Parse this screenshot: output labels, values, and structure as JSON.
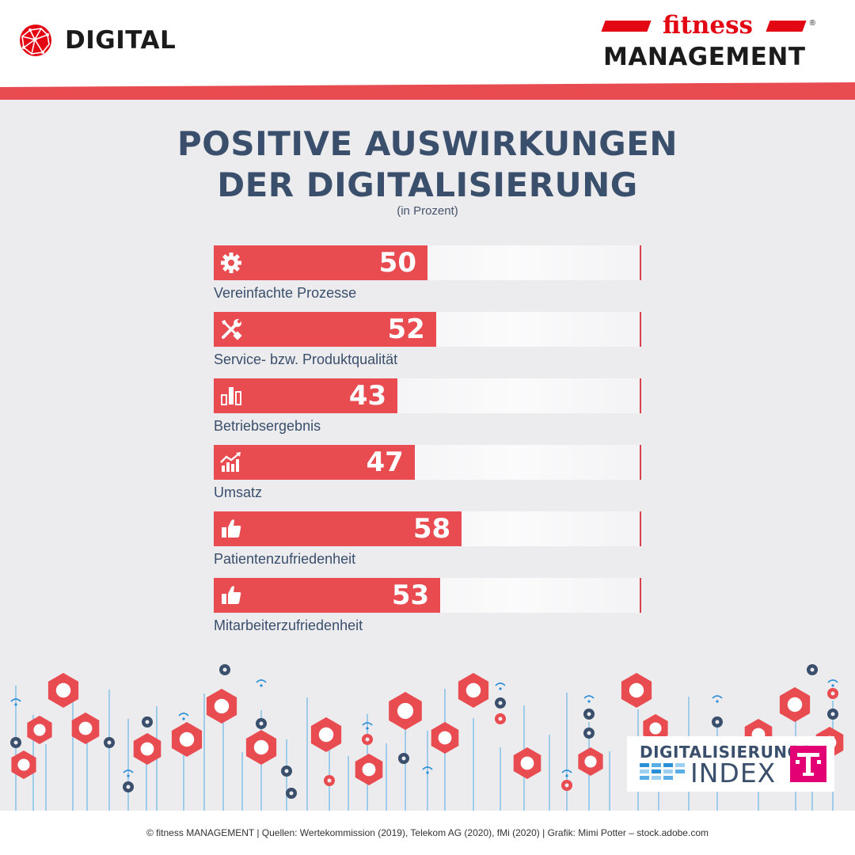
{
  "header": {
    "section_label": "DIGITAL",
    "brand_top": "fitness",
    "brand_bottom": "MANAGEMENT",
    "brand_reg": "®"
  },
  "colors": {
    "accent": "#e84b50",
    "title": "#3a4f6c",
    "brand_red": "#e30613",
    "telekom_magenta": "#e20074"
  },
  "chart_data": {
    "type": "bar",
    "orientation": "horizontal",
    "title_line1": "POSITIVE AUSWIRKUNGEN",
    "title_line2": "DER DIGITALISIERUNG",
    "subtitle": "(in Prozent)",
    "xlim": [
      0,
      100
    ],
    "grid": false,
    "legend": "none",
    "categories": [
      "Vereinfachte Prozesse",
      "Service- bzw. Produktqualität",
      "Betriebsergebnis",
      "Umsatz",
      "Patientenzufriedenheit",
      "Mitarbeiterzufriedenheit"
    ],
    "values": [
      50,
      52,
      43,
      47,
      58,
      53
    ],
    "icons": [
      "gear-icon",
      "tools-icon",
      "bar-chart-icon",
      "growth-chart-icon",
      "thumbs-up-icon",
      "thumbs-up-icon"
    ]
  },
  "badge": {
    "line1": "DIGITALISIERUNGS",
    "line2": "INDEX",
    "telekom_letter": "T"
  },
  "footer": {
    "text": "© fitness MANAGEMENT  | Quellen: Wertekommission (2019), Telekom AG (2020), fMi (2020)  |  Grafik: Mimi Potter – stock.adobe.com"
  }
}
